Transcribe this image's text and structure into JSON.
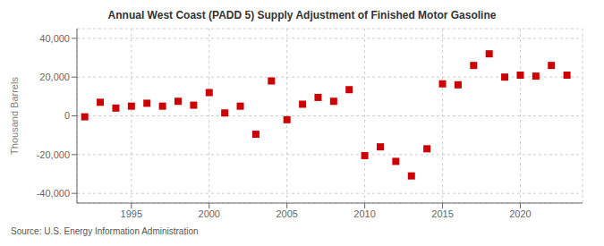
{
  "chart_data": {
    "type": "scatter",
    "title": "Annual West Coast (PADD 5) Supply Adjustment of Finished Motor Gasoline",
    "ylabel": "Thousand Barrels",
    "source": "Source: U.S. Energy Information Administration",
    "color": "#cc0000",
    "marker": "square",
    "grid": true,
    "x": [
      1992,
      1993,
      1994,
      1995,
      1996,
      1997,
      1998,
      1999,
      2000,
      2001,
      2002,
      2003,
      2004,
      2005,
      2006,
      2007,
      2008,
      2009,
      2010,
      2011,
      2012,
      2013,
      2014,
      2015,
      2016,
      2017,
      2018,
      2019,
      2020,
      2021,
      2022,
      2023
    ],
    "values": [
      -500,
      7000,
      4000,
      5000,
      6500,
      5000,
      7500,
      5500,
      12000,
      1500,
      5000,
      -9500,
      18000,
      -2000,
      6000,
      9500,
      7500,
      13500,
      -20500,
      -16000,
      -23500,
      -31000,
      -17000,
      16500,
      16000,
      26000,
      32000,
      20000,
      21000,
      20500,
      26000,
      21000
    ],
    "xlim": [
      1991.5,
      2024
    ],
    "xticks": [
      1995,
      2000,
      2005,
      2010,
      2015,
      2020
    ],
    "ylim": [
      -45000,
      45000
    ],
    "yticks": [
      {
        "value": -40000,
        "label": "-40,000"
      },
      {
        "value": -20000,
        "label": "-20,000"
      },
      0,
      {
        "value": 20000,
        "label": "20,000"
      },
      {
        "value": 40000,
        "label": "40,000"
      }
    ]
  }
}
